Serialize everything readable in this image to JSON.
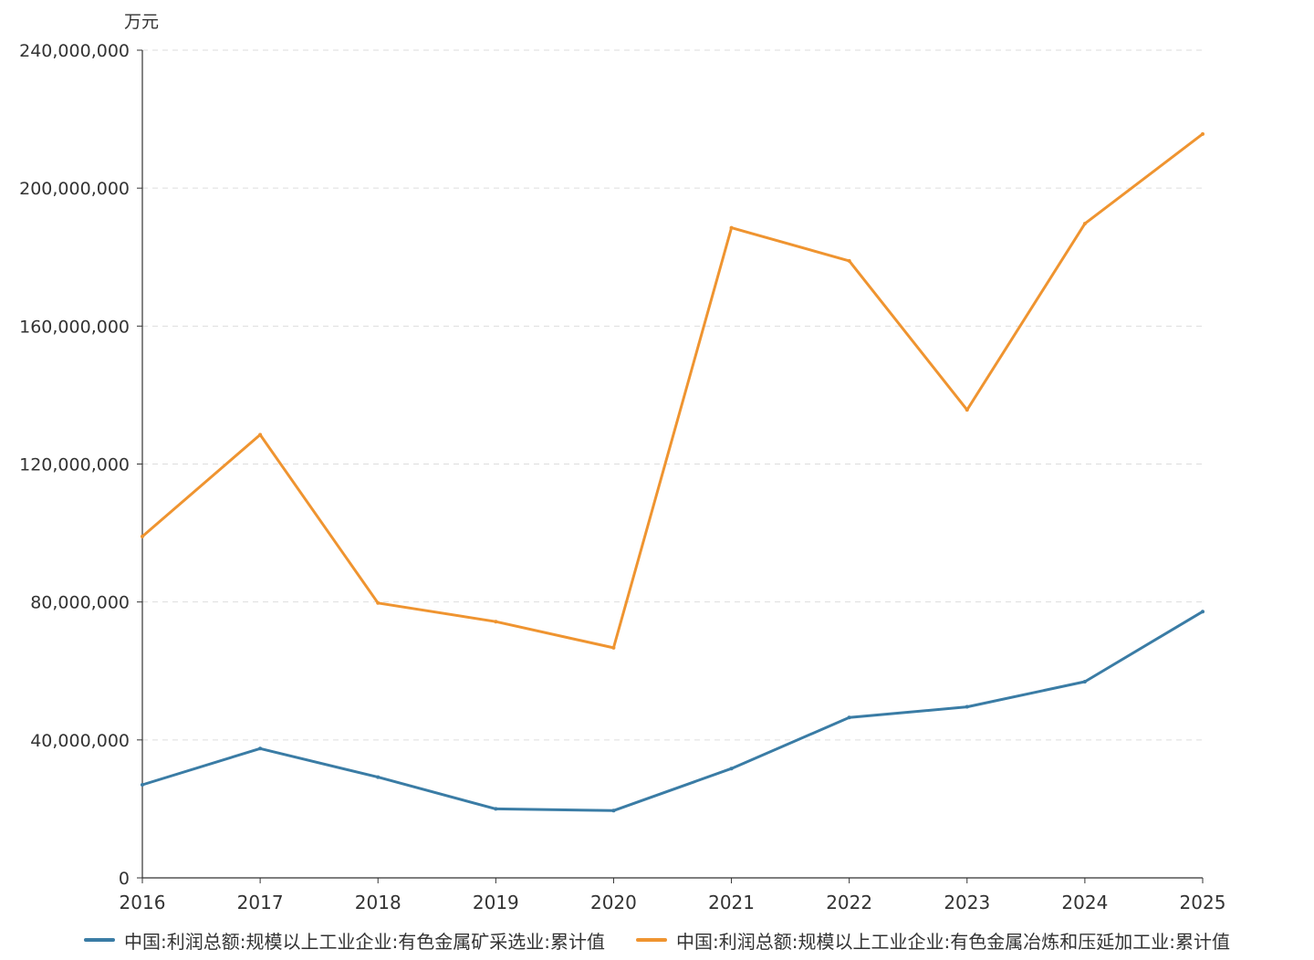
{
  "chart_data": {
    "type": "line",
    "title": "",
    "xlabel": "",
    "ylabel": "万元",
    "x": [
      "2016",
      "2017",
      "2018",
      "2019",
      "2020",
      "2021",
      "2022",
      "2023",
      "2024",
      "2025"
    ],
    "ylim": [
      0,
      240000000
    ],
    "yticks": [
      0,
      40000000,
      80000000,
      120000000,
      160000000,
      200000000,
      240000000
    ],
    "ytick_labels": [
      "0",
      "40,000,000",
      "80,000,000",
      "120,000,000",
      "160,000,000",
      "200,000,000",
      "240,000,000"
    ],
    "grid": true,
    "legend_position": "bottom",
    "series": [
      {
        "name": "中国:利润总额:规模以上工业企业:有色金属矿采选业:累计值",
        "color": "#3a7ca5",
        "values": [
          27000000,
          37500000,
          29200000,
          20000000,
          19500000,
          31700000,
          46500000,
          49600000,
          56900000,
          77200000
        ]
      },
      {
        "name": "中国:利润总额:规模以上工业企业:有色金属冶炼和压延加工业:累计值",
        "color": "#ef9430",
        "values": [
          99000000,
          128500000,
          79700000,
          74300000,
          66700000,
          188500000,
          178900000,
          135700000,
          189700000,
          215700000
        ]
      }
    ]
  }
}
